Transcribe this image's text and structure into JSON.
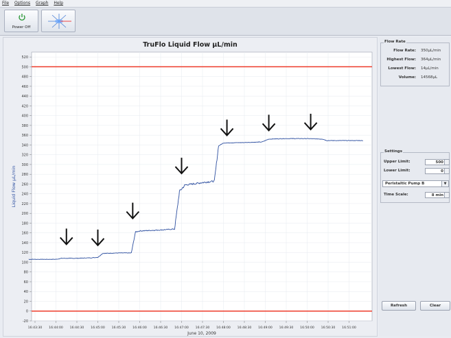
{
  "menu": [
    "File",
    "Options",
    "Graph",
    "Help"
  ],
  "toolbar": {
    "power_label": "Power Off"
  },
  "colors": {
    "trace": "#2d4fa0",
    "limit": "#ee3a2a",
    "title": "#222222"
  },
  "chart_data": {
    "type": "line",
    "title": "TruFlo Liquid Flow µL/min",
    "ylabel": "Liquid Flow µL/min",
    "xlabel": "June 10, 2009",
    "ylim": [
      -20,
      530
    ],
    "y_ticks": [
      -20,
      0,
      20,
      40,
      60,
      80,
      100,
      120,
      140,
      160,
      180,
      200,
      220,
      240,
      260,
      280,
      300,
      320,
      340,
      360,
      380,
      400,
      420,
      440,
      460,
      480,
      500,
      520
    ],
    "x_tick_labels": [
      "16:43:30",
      "16:44:00",
      "16:44:30",
      "16:45:00",
      "16:45:30",
      "16:46:00",
      "16:46:30",
      "16:47:00",
      "16:47:30",
      "16:48:00",
      "16:48:30",
      "16:49:00",
      "16:49:30",
      "16:50:00",
      "16:50:30",
      "16:51:00"
    ],
    "upper_limit": 500,
    "lower_limit": 0,
    "series": [
      {
        "x": [
          "16:43:21",
          "16:44:00",
          "16:44:08",
          "16:44:30",
          "16:44:50",
          "16:45:00",
          "16:45:07",
          "16:45:30",
          "16:45:48",
          "16:45:54",
          "16:46:00",
          "16:46:30",
          "16:46:50",
          "16:46:57",
          "16:47:05",
          "16:47:30",
          "16:47:47",
          "16:47:53",
          "16:48:00",
          "16:48:30",
          "16:48:55",
          "16:49:00",
          "16:49:05",
          "16:49:30",
          "16:50:00",
          "16:50:22",
          "16:50:28",
          "16:51:00",
          "16:51:20"
        ],
        "y": [
          106,
          106,
          108,
          108,
          109,
          110,
          118,
          119,
          119,
          162,
          164,
          166,
          168,
          245,
          258,
          263,
          266,
          338,
          344,
          345,
          346,
          349,
          352,
          353,
          353,
          352,
          349,
          349,
          349
        ]
      }
    ],
    "annotations": [
      {
        "type": "arrow",
        "x": "16:44:15",
        "y": 152
      },
      {
        "type": "arrow",
        "x": "16:45:00",
        "y": 150
      },
      {
        "type": "arrow",
        "x": "16:45:50",
        "y": 205
      },
      {
        "type": "arrow",
        "x": "16:47:00",
        "y": 297
      },
      {
        "type": "arrow",
        "x": "16:48:05",
        "y": 375
      },
      {
        "type": "arrow",
        "x": "16:49:05",
        "y": 385
      },
      {
        "type": "arrow",
        "x": "16:50:05",
        "y": 387
      }
    ],
    "grid": true,
    "legend": "none"
  },
  "flow_rate": {
    "legend": "Flow Rate",
    "rows": [
      {
        "label": "Flow Rate:",
        "value": "350µL/min"
      },
      {
        "label": "Highest Flow:",
        "value": "364µL/min"
      },
      {
        "label": "Lowest Flow:",
        "value": "14µL/min"
      },
      {
        "label": "Volume:",
        "value": "14568µL"
      }
    ]
  },
  "settings": {
    "legend": "Settings",
    "upper_label": "Upper Limit:",
    "upper_value": "500",
    "lower_label": "Lower Limit:",
    "lower_value": "0",
    "pump": "Peristaltic Pump B",
    "timescale_label": "Time Scale:",
    "timescale_value": "8 min"
  },
  "buttons": {
    "refresh": "Refresh",
    "clear": "Clear"
  }
}
